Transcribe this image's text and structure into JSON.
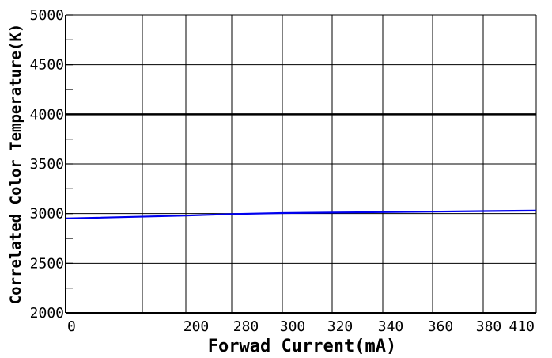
{
  "chart_data": {
    "type": "line",
    "xlabel": "Forwad Current(mA)",
    "ylabel": "Correlated Color Temperature(K)",
    "x_tick_labels": [
      "0",
      "200",
      "280",
      "300",
      "320",
      "340",
      "360",
      "380",
      "410"
    ],
    "y_ticks": [
      2000,
      2500,
      3000,
      3500,
      4000,
      4500,
      5000
    ],
    "ylim": [
      2000,
      5000
    ],
    "grid": true,
    "colors": {
      "series": "#0000ee",
      "grid": "#000000",
      "reference": "#000000"
    },
    "reference_line": {
      "y": 4000
    },
    "series": [
      {
        "x_tick_index": [
          0,
          1,
          2,
          3,
          4,
          5,
          6,
          7,
          8
        ],
        "y": [
          2950,
          2980,
          2995,
          3005,
          3010,
          3015,
          3020,
          3025,
          3030
        ]
      }
    ]
  }
}
